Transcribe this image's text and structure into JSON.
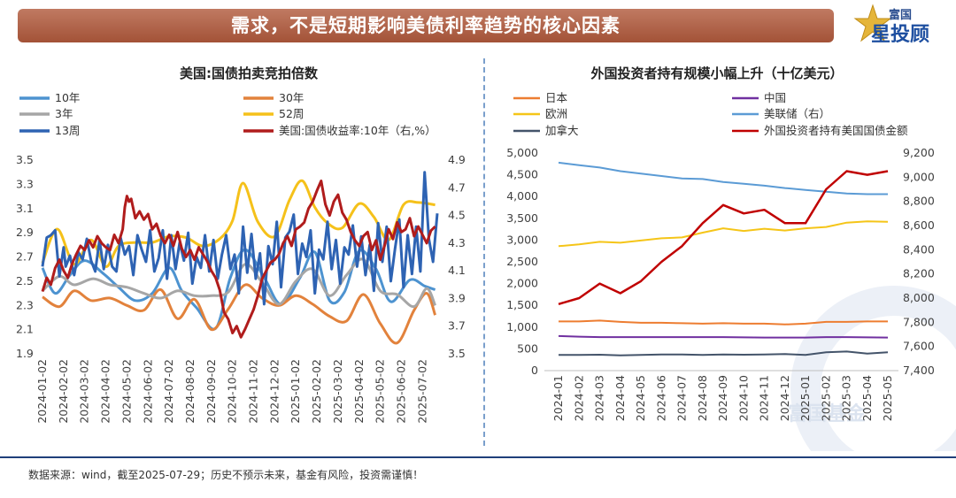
{
  "header": {
    "title": "需求，不是短期影响美债利率趋势的核心因素",
    "logo_top": "富国",
    "logo_main": "星投顾"
  },
  "watermark_text": "富国基金",
  "footer": {
    "source": "数据来源：wind，截至2025-07-29；历史不预示未来，基金有风险，投资需谨慎！"
  },
  "chart_data": [
    {
      "id": "left",
      "type": "line",
      "title": "美国:国债拍卖竞拍倍数",
      "x_labels": [
        "2024-01-02",
        "2024-02-02",
        "2024-03-02",
        "2024-04-02",
        "2024-05-02",
        "2024-06-02",
        "2024-07-02",
        "2024-08-02",
        "2024-09-02",
        "2024-10-02",
        "2024-11-02",
        "2024-12-02",
        "2025-01-02",
        "2025-02-02",
        "2025-03-02",
        "2025-04-02",
        "2025-05-02",
        "2025-06-02",
        "2025-07-02"
      ],
      "x_range": [
        0,
        18.7
      ],
      "ylim_left": [
        1.9,
        3.5
      ],
      "yticks_left": [
        "3.5",
        "3.3",
        "3.1",
        "2.9",
        "2.7",
        "2.5",
        "2.3",
        "2.1",
        "1.9"
      ],
      "ylim_right": [
        3.5,
        4.9
      ],
      "yticks_right": [
        "4.9",
        "4.7",
        "4.5",
        "4.3",
        "4.1",
        "3.9",
        "3.7",
        "3.5"
      ],
      "legend": [
        {
          "name": "10年",
          "color": "#4d93d0"
        },
        {
          "name": "30年",
          "color": "#e2823c"
        },
        {
          "name": "3年",
          "color": "#a6a6a6"
        },
        {
          "name": "52周",
          "color": "#f5c11a"
        },
        {
          "name": "13周",
          "color": "#2e63b3"
        },
        {
          "name": "美国:国债收益率:10年（右,%）",
          "color": "#b01c1c"
        }
      ],
      "series": [
        {
          "name": "10年",
          "axis": "left",
          "color": "#4d93d0",
          "smooth": true,
          "x": [
            0,
            0.6,
            1.3,
            2.0,
            2.9,
            3.6,
            4.4,
            5.2,
            6.0,
            6.6,
            7.3,
            8.2,
            8.9,
            9.6,
            10.5,
            11.3,
            12.2,
            12.9,
            13.6,
            14.3,
            15.0,
            15.8,
            16.5,
            17.4,
            18.1,
            18.6
          ],
          "y": [
            2.61,
            2.4,
            2.55,
            2.67,
            2.56,
            2.45,
            2.34,
            2.4,
            2.61,
            2.42,
            2.28,
            2.11,
            2.53,
            2.76,
            2.53,
            2.31,
            2.53,
            2.74,
            2.34,
            2.41,
            2.75,
            2.6,
            2.33,
            2.51,
            2.46,
            2.43
          ]
        },
        {
          "name": "30年",
          "axis": "left",
          "color": "#e2823c",
          "smooth": true,
          "x": [
            0,
            0.8,
            1.5,
            2.3,
            3.2,
            4.0,
            4.8,
            5.6,
            6.4,
            7.2,
            8.0,
            8.8,
            9.6,
            10.4,
            11.2,
            12.0,
            12.8,
            13.6,
            14.4,
            15.2,
            16.0,
            16.8,
            17.6,
            18.2,
            18.6
          ],
          "y": [
            2.37,
            2.29,
            2.42,
            2.34,
            2.36,
            2.3,
            2.26,
            2.43,
            2.19,
            2.35,
            2.1,
            2.27,
            2.47,
            2.36,
            2.3,
            2.38,
            2.31,
            2.21,
            2.17,
            2.39,
            2.15,
            1.99,
            2.26,
            2.4,
            2.22
          ]
        },
        {
          "name": "3年",
          "axis": "left",
          "color": "#a6a6a6",
          "smooth": true,
          "x": [
            0,
            0.8,
            1.5,
            2.4,
            3.2,
            4.0,
            4.8,
            5.6,
            6.4,
            7.2,
            8.0,
            8.8,
            9.6,
            10.4,
            11.2,
            12.0,
            12.8,
            13.6,
            14.4,
            15.2,
            16.0,
            16.8,
            17.6,
            18.2,
            18.6
          ],
          "y": [
            2.42,
            2.54,
            2.47,
            2.52,
            2.47,
            2.45,
            2.4,
            2.36,
            2.42,
            2.38,
            2.38,
            2.41,
            2.64,
            2.49,
            2.31,
            2.5,
            2.6,
            2.38,
            2.55,
            2.68,
            2.42,
            2.39,
            2.29,
            2.44,
            2.3
          ]
        },
        {
          "name": "52周",
          "axis": "left",
          "color": "#f5c11a",
          "smooth": true,
          "x": [
            0,
            0.7,
            1.5,
            2.3,
            3.0,
            3.6,
            4.4,
            5.2,
            6.0,
            6.8,
            7.6,
            8.4,
            9.0,
            9.5,
            10.2,
            11.0,
            11.7,
            12.3,
            12.9,
            13.5,
            14.2,
            15.0,
            15.7,
            16.4,
            17.1,
            17.8,
            18.6
          ],
          "y": [
            2.65,
            2.93,
            2.64,
            2.84,
            2.62,
            2.79,
            2.82,
            2.82,
            2.87,
            2.86,
            2.79,
            2.85,
            3.0,
            3.31,
            2.99,
            2.87,
            3.17,
            3.33,
            3.11,
            2.98,
            2.94,
            3.14,
            3.03,
            2.84,
            3.13,
            3.15,
            3.13
          ]
        },
        {
          "name": "13周",
          "axis": "left",
          "color": "#2e63b3",
          "smooth": false,
          "x": [
            0,
            0.2,
            0.4,
            0.6,
            0.8,
            1.0,
            1.1,
            1.3,
            1.5,
            1.7,
            1.9,
            2.1,
            2.3,
            2.5,
            2.7,
            2.9,
            3.1,
            3.3,
            3.5,
            3.7,
            3.9,
            4.1,
            4.3,
            4.5,
            4.7,
            4.9,
            5.1,
            5.3,
            5.5,
            5.7,
            5.9,
            6.1,
            6.3,
            6.5,
            6.7,
            6.9,
            7.1,
            7.3,
            7.5,
            7.7,
            7.9,
            8.1,
            8.3,
            8.5,
            8.7,
            8.9,
            9.1,
            9.3,
            9.5,
            9.7,
            9.9,
            10.1,
            10.3,
            10.5,
            10.7,
            10.9,
            11.1,
            11.3,
            11.5,
            11.7,
            11.9,
            12.1,
            12.3,
            12.5,
            12.7,
            12.9,
            13.1,
            13.3,
            13.5,
            13.7,
            13.9,
            14.1,
            14.3,
            14.5,
            14.7,
            14.9,
            15.1,
            15.3,
            15.5,
            15.7,
            15.9,
            16.1,
            16.3,
            16.5,
            16.7,
            16.9,
            17.1,
            17.3,
            17.5,
            17.7,
            17.9,
            18.1,
            18.3,
            18.5,
            18.7
          ],
          "y": [
            2.62,
            2.86,
            2.88,
            2.92,
            2.54,
            2.78,
            2.62,
            2.71,
            2.55,
            2.74,
            2.68,
            2.85,
            2.67,
            2.58,
            2.84,
            2.6,
            2.8,
            2.62,
            2.58,
            2.86,
            2.72,
            2.79,
            2.55,
            2.88,
            2.76,
            2.66,
            2.92,
            2.58,
            2.69,
            2.92,
            2.52,
            2.88,
            2.6,
            2.82,
            2.67,
            2.9,
            2.48,
            2.7,
            2.61,
            2.88,
            2.58,
            2.84,
            2.52,
            2.72,
            2.88,
            2.6,
            2.72,
            2.4,
            2.95,
            2.57,
            2.89,
            2.52,
            2.73,
            2.31,
            2.79,
            2.64,
            2.99,
            2.45,
            2.86,
            2.91,
            3.05,
            2.56,
            2.81,
            2.7,
            2.92,
            2.4,
            2.76,
            2.68,
            2.99,
            2.6,
            2.84,
            2.48,
            2.78,
            2.72,
            2.96,
            2.62,
            2.87,
            2.55,
            2.8,
            2.42,
            2.98,
            2.66,
            2.95,
            2.5,
            2.77,
            3.01,
            2.45,
            2.88,
            2.56,
            2.95,
            2.58,
            3.4,
            2.85,
            2.66,
            3.06
          ]
        },
        {
          "name": "美国:国债收益率:10年（右,%）",
          "axis": "right",
          "color": "#b01c1c",
          "smooth": false,
          "x": [
            0,
            0.2,
            0.4,
            0.6,
            0.8,
            1.0,
            1.2,
            1.4,
            1.6,
            1.8,
            2.0,
            2.2,
            2.4,
            2.6,
            2.8,
            3.0,
            3.2,
            3.4,
            3.6,
            3.8,
            3.9,
            4.0,
            4.1,
            4.2,
            4.4,
            4.6,
            4.8,
            5.0,
            5.2,
            5.4,
            5.6,
            5.8,
            6.0,
            6.2,
            6.4,
            6.6,
            6.8,
            7.0,
            7.2,
            7.4,
            7.6,
            7.8,
            8.0,
            8.2,
            8.4,
            8.6,
            8.8,
            9.0,
            9.2,
            9.4,
            9.6,
            9.8,
            10.0,
            10.2,
            10.4,
            10.6,
            10.8,
            11.0,
            11.2,
            11.4,
            11.6,
            11.8,
            12.0,
            12.2,
            12.4,
            12.6,
            12.8,
            13.0,
            13.2,
            13.4,
            13.6,
            13.8,
            14.0,
            14.2,
            14.4,
            14.6,
            14.8,
            15.0,
            15.2,
            15.4,
            15.6,
            15.8,
            16.0,
            16.2,
            16.4,
            16.6,
            16.8,
            17.0,
            17.2,
            17.4,
            17.6,
            17.8,
            18.0,
            18.2,
            18.4,
            18.6
          ],
          "y": [
            3.95,
            4.05,
            4.0,
            4.12,
            4.18,
            4.1,
            4.05,
            4.15,
            4.22,
            4.28,
            4.25,
            4.32,
            4.27,
            4.35,
            4.3,
            4.27,
            4.25,
            4.36,
            4.3,
            4.4,
            4.56,
            4.64,
            4.6,
            4.62,
            4.48,
            4.53,
            4.47,
            4.51,
            4.4,
            4.44,
            4.35,
            4.3,
            4.36,
            4.28,
            4.38,
            4.26,
            4.2,
            4.25,
            4.18,
            4.27,
            4.22,
            4.17,
            4.1,
            4.05,
            3.96,
            3.8,
            3.75,
            3.65,
            3.7,
            3.62,
            3.68,
            3.75,
            3.82,
            3.92,
            4.04,
            4.1,
            4.16,
            4.18,
            4.22,
            4.3,
            4.35,
            4.28,
            4.4,
            4.42,
            4.45,
            4.55,
            4.6,
            4.68,
            4.75,
            4.58,
            4.5,
            4.6,
            4.65,
            4.52,
            4.47,
            4.38,
            4.32,
            4.28,
            4.35,
            4.38,
            4.25,
            4.32,
            4.18,
            4.28,
            4.4,
            4.33,
            4.45,
            4.38,
            4.4,
            4.48,
            4.35,
            4.42,
            4.36,
            4.3,
            4.39,
            4.42
          ]
        }
      ]
    },
    {
      "id": "right",
      "type": "line",
      "title": "外国投资者持有规模小幅上升（十亿美元）",
      "x_labels": [
        "2024-01",
        "2024-02",
        "2024-03",
        "2024-04",
        "2024-05",
        "2024-06",
        "2024-07",
        "2024-08",
        "2024-09",
        "2024-10",
        "2024-11",
        "2024-12",
        "2025-01",
        "2025-02",
        "2025-03",
        "2025-04",
        "2025-05"
      ],
      "ylim_left": [
        0,
        5000
      ],
      "yticks_left": [
        "5,000",
        "4,500",
        "4,000",
        "3,500",
        "3,000",
        "2,500",
        "2,000",
        "1,500",
        "1,000",
        "500",
        "0"
      ],
      "ylim_right": [
        7400,
        9200
      ],
      "yticks_right": [
        "9,200",
        "9,000",
        "8,800",
        "8,600",
        "8,400",
        "8,200",
        "8,000",
        "7,800",
        "7,600",
        "7,400"
      ],
      "legend": [
        {
          "name": "日本",
          "color": "#ed7d31"
        },
        {
          "name": "中国",
          "color": "#7030a0"
        },
        {
          "name": "欧洲",
          "color": "#f5c518"
        },
        {
          "name": "美联储（右）",
          "color": "#5b9bd5"
        },
        {
          "name": "加拿大",
          "color": "#44546a"
        },
        {
          "name": "外国投资者持有美国国债金额",
          "color": "#c00000"
        }
      ],
      "series": [
        {
          "name": "日本",
          "axis": "left",
          "color": "#ed7d31",
          "values": [
            1130,
            1130,
            1150,
            1120,
            1100,
            1100,
            1090,
            1080,
            1090,
            1080,
            1080,
            1060,
            1080,
            1120,
            1120,
            1130,
            1130
          ]
        },
        {
          "name": "中国",
          "axis": "left",
          "color": "#7030a0",
          "values": [
            795,
            780,
            770,
            770,
            770,
            770,
            770,
            770,
            770,
            765,
            760,
            760,
            760,
            770,
            770,
            765,
            760
          ]
        },
        {
          "name": "欧洲",
          "axis": "left",
          "color": "#f5c518",
          "values": [
            2860,
            2900,
            2960,
            2940,
            2990,
            3040,
            3060,
            3170,
            3270,
            3210,
            3260,
            3220,
            3270,
            3300,
            3400,
            3430,
            3420
          ]
        },
        {
          "name": "美联储（右）",
          "axis": "right",
          "color": "#5b9bd5",
          "values": [
            9120,
            9100,
            9080,
            9050,
            9030,
            9010,
            8990,
            8985,
            8960,
            8945,
            8930,
            8910,
            8895,
            8880,
            8865,
            8860,
            8860
          ]
        },
        {
          "name": "加拿大",
          "axis": "left",
          "color": "#44546a",
          "values": [
            360,
            360,
            365,
            350,
            360,
            370,
            370,
            360,
            370,
            365,
            370,
            380,
            360,
            420,
            440,
            390,
            420
          ]
        },
        {
          "name": "外国投资者持有美国国债金额",
          "axis": "right",
          "color": "#c00000",
          "values": [
            7950,
            8000,
            8120,
            8040,
            8140,
            8300,
            8430,
            8620,
            8770,
            8700,
            8730,
            8620,
            8620,
            8900,
            9050,
            9020,
            9050
          ]
        }
      ]
    }
  ]
}
